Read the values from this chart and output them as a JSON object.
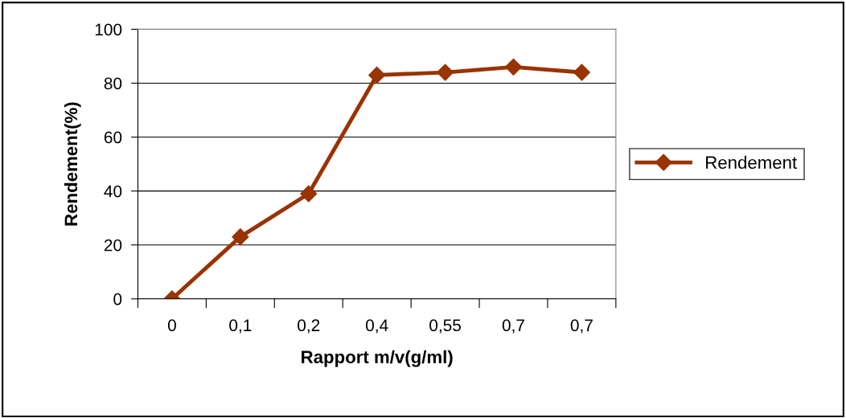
{
  "chart_data": {
    "type": "line",
    "xlabel": "Rapport m/v(g/ml)",
    "ylabel": "Rendement(%)",
    "categories": [
      "0",
      "0,1",
      "0,2",
      "0,4",
      "0,55",
      "0,7",
      "0,7"
    ],
    "series": [
      {
        "name": "Rendement",
        "color": "#993300",
        "values": [
          0,
          23,
          39,
          83,
          84,
          86,
          84
        ]
      }
    ],
    "ylim": [
      0,
      100
    ],
    "yticks": [
      0,
      20,
      40,
      60,
      80,
      100
    ],
    "grid": "y",
    "legend": "right",
    "marker": "diamond",
    "line_style": "solid"
  }
}
